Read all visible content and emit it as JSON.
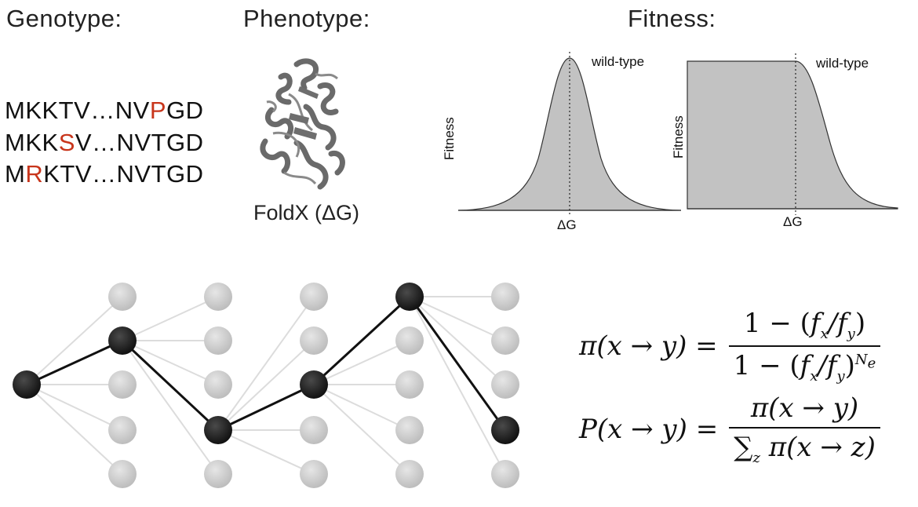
{
  "headings": {
    "genotype": "Genotype:",
    "phenotype": "Phenotype:",
    "fitness": "Fitness:"
  },
  "sequences": [
    {
      "parts": [
        "MKKTV…NV",
        "P",
        "GD"
      ],
      "mutation_index": 1
    },
    {
      "parts": [
        "MKK",
        "S",
        "V…NVTGD"
      ],
      "mutation_index": 1
    },
    {
      "parts": [
        "M",
        "R",
        "KTV…NVTGD"
      ],
      "mutation_index": 1
    }
  ],
  "phenotype": {
    "label": "FoldX (ΔG)"
  },
  "fitness_plots": [
    {
      "ylabel": "Fitness",
      "xlabel": "ΔG",
      "marker_label": "wild-type",
      "shape": "gaussian"
    },
    {
      "ylabel": "Fitness",
      "xlabel": "ΔG",
      "marker_label": "wild-type",
      "shape": "plateau-then-decline"
    }
  ],
  "formulas": {
    "pi_lhs": "π(x → y) =",
    "pi_num": "1 − (fx/fy)",
    "pi_den": "1 − (fx/fy)^Ne",
    "P_lhs": "P(x → y) =",
    "P_num": "π(x → y)",
    "P_den": "Σz π(x → z)"
  },
  "colors": {
    "mutation": "#c8351b",
    "curve_fill": "#c2c2c2",
    "node_light": "#cfcfcf",
    "node_dark": "#1e1e1e"
  },
  "network": {
    "columns": 6,
    "path_rows": [
      2,
      1,
      3,
      2,
      0,
      3
    ]
  }
}
